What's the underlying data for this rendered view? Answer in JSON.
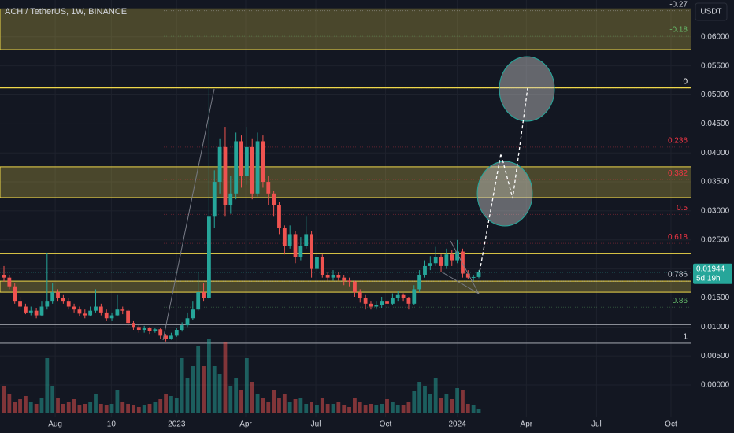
{
  "chart_data": {
    "type": "candlestick",
    "title": "ACH / TetherUS, 1W, BINANCE",
    "currency": "USDT",
    "up_color": "#26a69a",
    "down_color": "#ef5350",
    "candles": [
      [
        0.019,
        0.0205,
        0.0178,
        0.0185
      ],
      [
        0.0185,
        0.019,
        0.0165,
        0.017
      ],
      [
        0.017,
        0.0175,
        0.014,
        0.0145
      ],
      [
        0.0145,
        0.0152,
        0.013,
        0.0135
      ],
      [
        0.0135,
        0.014,
        0.0122,
        0.0125
      ],
      [
        0.0125,
        0.0135,
        0.012,
        0.0128
      ],
      [
        0.0128,
        0.0133,
        0.0115,
        0.012
      ],
      [
        0.012,
        0.0145,
        0.0118,
        0.0135
      ],
      [
        0.0135,
        0.0228,
        0.013,
        0.0145
      ],
      [
        0.0145,
        0.0175,
        0.014,
        0.016
      ],
      [
        0.016,
        0.0165,
        0.0145,
        0.015
      ],
      [
        0.015,
        0.0155,
        0.014,
        0.0145
      ],
      [
        0.0145,
        0.015,
        0.013,
        0.0135
      ],
      [
        0.0135,
        0.014,
        0.0125,
        0.013
      ],
      [
        0.013,
        0.0135,
        0.0118,
        0.0123
      ],
      [
        0.0123,
        0.013,
        0.0115,
        0.012
      ],
      [
        0.012,
        0.0135,
        0.0118,
        0.0128
      ],
      [
        0.0128,
        0.0165,
        0.0125,
        0.0135
      ],
      [
        0.0135,
        0.014,
        0.012,
        0.0125
      ],
      [
        0.0125,
        0.013,
        0.011,
        0.0115
      ],
      [
        0.0115,
        0.0125,
        0.011,
        0.012
      ],
      [
        0.012,
        0.0155,
        0.0118,
        0.013
      ],
      [
        0.013,
        0.0135,
        0.0122,
        0.0128
      ],
      [
        0.0128,
        0.013,
        0.0102,
        0.0107
      ],
      [
        0.0107,
        0.011,
        0.0095,
        0.01
      ],
      [
        0.01,
        0.0103,
        0.009,
        0.0095
      ],
      [
        0.0095,
        0.0102,
        0.009,
        0.0098
      ],
      [
        0.0098,
        0.01,
        0.0088,
        0.0093
      ],
      [
        0.0093,
        0.0099,
        0.009,
        0.0096
      ],
      [
        0.0096,
        0.0098,
        0.008,
        0.0085
      ],
      [
        0.0085,
        0.0088,
        0.0075,
        0.008
      ],
      [
        0.008,
        0.009,
        0.0078,
        0.0085
      ],
      [
        0.0085,
        0.0098,
        0.0083,
        0.0095
      ],
      [
        0.0095,
        0.0108,
        0.0092,
        0.0103
      ],
      [
        0.0103,
        0.0125,
        0.01,
        0.0115
      ],
      [
        0.0115,
        0.0145,
        0.0112,
        0.013
      ],
      [
        0.013,
        0.0195,
        0.0128,
        0.016
      ],
      [
        0.016,
        0.0175,
        0.0145,
        0.015
      ],
      [
        0.015,
        0.0515,
        0.0148,
        0.029
      ],
      [
        0.029,
        0.037,
        0.027,
        0.035
      ],
      [
        0.035,
        0.0425,
        0.033,
        0.041
      ],
      [
        0.041,
        0.0445,
        0.029,
        0.031
      ],
      [
        0.031,
        0.036,
        0.0295,
        0.033
      ],
      [
        0.033,
        0.0435,
        0.032,
        0.042
      ],
      [
        0.042,
        0.043,
        0.034,
        0.036
      ],
      [
        0.036,
        0.0445,
        0.0345,
        0.041
      ],
      [
        0.041,
        0.0425,
        0.032,
        0.033
      ],
      [
        0.033,
        0.0435,
        0.0325,
        0.042
      ],
      [
        0.042,
        0.043,
        0.034,
        0.035
      ],
      [
        0.035,
        0.036,
        0.031,
        0.033
      ],
      [
        0.033,
        0.0335,
        0.029,
        0.031
      ],
      [
        0.031,
        0.0315,
        0.026,
        0.027
      ],
      [
        0.027,
        0.0275,
        0.0225,
        0.024
      ],
      [
        0.024,
        0.0275,
        0.0235,
        0.026
      ],
      [
        0.026,
        0.0265,
        0.021,
        0.022
      ],
      [
        0.022,
        0.0255,
        0.0215,
        0.024
      ],
      [
        0.024,
        0.029,
        0.0235,
        0.026
      ],
      [
        0.026,
        0.0265,
        0.0185,
        0.02
      ],
      [
        0.02,
        0.0225,
        0.0195,
        0.022
      ],
      [
        0.022,
        0.0225,
        0.0185,
        0.019
      ],
      [
        0.019,
        0.0195,
        0.018,
        0.0185
      ],
      [
        0.0185,
        0.0198,
        0.018,
        0.019
      ],
      [
        0.019,
        0.0195,
        0.018,
        0.0185
      ],
      [
        0.0185,
        0.019,
        0.0172,
        0.018
      ],
      [
        0.018,
        0.0185,
        0.017,
        0.0178
      ],
      [
        0.0178,
        0.018,
        0.0152,
        0.016
      ],
      [
        0.016,
        0.0165,
        0.0142,
        0.015
      ],
      [
        0.015,
        0.0155,
        0.013,
        0.014
      ],
      [
        0.014,
        0.0145,
        0.013,
        0.0135
      ],
      [
        0.0135,
        0.0145,
        0.013,
        0.0138
      ],
      [
        0.0138,
        0.0152,
        0.0133,
        0.0145
      ],
      [
        0.0145,
        0.0148,
        0.0135,
        0.014
      ],
      [
        0.014,
        0.0158,
        0.0138,
        0.015
      ],
      [
        0.015,
        0.0162,
        0.0145,
        0.0155
      ],
      [
        0.0155,
        0.0158,
        0.0145,
        0.015
      ],
      [
        0.015,
        0.0152,
        0.013,
        0.014
      ],
      [
        0.014,
        0.0172,
        0.0138,
        0.0165
      ],
      [
        0.0165,
        0.0198,
        0.016,
        0.019
      ],
      [
        0.019,
        0.0215,
        0.0185,
        0.0205
      ],
      [
        0.0205,
        0.0222,
        0.0198,
        0.021
      ],
      [
        0.021,
        0.0238,
        0.0205,
        0.022
      ],
      [
        0.022,
        0.0225,
        0.0195,
        0.0205
      ],
      [
        0.0205,
        0.0235,
        0.02,
        0.0225
      ],
      [
        0.0225,
        0.0232,
        0.0205,
        0.0215
      ],
      [
        0.0215,
        0.025,
        0.021,
        0.023
      ],
      [
        0.023,
        0.0235,
        0.0185,
        0.0192
      ],
      [
        0.0192,
        0.0198,
        0.0182,
        0.0185
      ],
      [
        0.0185,
        0.019,
        0.018,
        0.0186
      ],
      [
        0.0186,
        0.0198,
        0.0184,
        0.01944
      ]
    ],
    "volumes": [
      35,
      25,
      15,
      18,
      22,
      15,
      12,
      20,
      70,
      35,
      20,
      12,
      15,
      18,
      10,
      12,
      15,
      25,
      12,
      10,
      12,
      30,
      15,
      12,
      10,
      8,
      10,
      12,
      15,
      18,
      25,
      22,
      20,
      70,
      45,
      60,
      85,
      60,
      95,
      60,
      50,
      90,
      35,
      45,
      30,
      70,
      40,
      25,
      20,
      15,
      30,
      20,
      25,
      15,
      18,
      20,
      12,
      15,
      10,
      20,
      12,
      12,
      15,
      10,
      8,
      20,
      15,
      10,
      12,
      10,
      12,
      18,
      15,
      10,
      10,
      15,
      28,
      40,
      35,
      25,
      45,
      20,
      25,
      18,
      32,
      30,
      12,
      10,
      5
    ],
    "vlim": [
      0,
      100
    ],
    "xlim": [
      -0.73,
      127.4
    ],
    "xticks": [
      {
        "value": 9.5,
        "label": "Aug"
      },
      {
        "value": 19.9,
        "label": "10"
      },
      {
        "value": 32,
        "label": "2023"
      },
      {
        "value": 44.8,
        "label": "Apr"
      },
      {
        "value": 57.8,
        "label": "Jul"
      },
      {
        "value": 70.7,
        "label": "Oct"
      },
      {
        "value": 84,
        "label": "2024"
      },
      {
        "value": 96.8,
        "label": "Apr"
      },
      {
        "value": 109.8,
        "label": "Jul"
      },
      {
        "value": 123.6,
        "label": "Oct"
      }
    ],
    "ylim": [
      -0.00556,
      0.06635
    ],
    "yticks": [
      {
        "value": 0,
        "label": "0.00000"
      },
      {
        "value": 0.005,
        "label": "0.00500"
      },
      {
        "value": 0.01,
        "label": "0.01000"
      },
      {
        "value": 0.015,
        "label": "0.01500"
      },
      {
        "value": 0.02,
        "label": "0.02000"
      },
      {
        "value": 0.025,
        "label": "0.02500"
      },
      {
        "value": 0.03,
        "label": "0.03000"
      },
      {
        "value": 0.035,
        "label": "0.03500"
      },
      {
        "value": 0.04,
        "label": "0.04000"
      },
      {
        "value": 0.045,
        "label": "0.04500"
      },
      {
        "value": 0.05,
        "label": "0.05000"
      },
      {
        "value": 0.055,
        "label": "0.05500"
      },
      {
        "value": 0.06,
        "label": "0.06000"
      }
    ],
    "grid": true,
    "fib_levels": [
      {
        "level": -0.27,
        "price": 0.0645,
        "color": "#d1d4dc"
      },
      {
        "level": -0.18,
        "price": 0.0601,
        "color": "#66bb6a"
      },
      {
        "level": 0,
        "price": 0.0512,
        "color": "#ffffff"
      },
      {
        "level": 0.236,
        "price": 0.041,
        "color": "#f23645"
      },
      {
        "level": 0.382,
        "price": 0.0354,
        "color": "#f23645"
      },
      {
        "level": 0.5,
        "price": 0.0294,
        "color": "#f23645"
      },
      {
        "level": 0.618,
        "price": 0.0244,
        "color": "#f23645"
      },
      {
        "level": 0.786,
        "price": 0.0179,
        "color": "#d1d4dc"
      },
      {
        "level": 0.86,
        "price": 0.0134,
        "color": "#66bb6a"
      },
      {
        "level": 1,
        "price": 0.0072,
        "color": "#d1d4dc"
      }
    ],
    "zones": [
      [
        0.0578,
        0.0648
      ],
      [
        0.0323,
        0.0376
      ],
      [
        0.016,
        0.0179
      ]
    ],
    "hlines": [
      {
        "price": 0.0512,
        "color": "#f0d84a"
      },
      {
        "price": 0.0227,
        "color": "#f0d84a"
      },
      {
        "price": 0.01045,
        "color": "#d1d4dc"
      },
      {
        "price": 0.0072,
        "color": "#9598a1"
      }
    ],
    "last_price": 0.01944,
    "countdown": "5d 19h",
    "marked_price": 0.01914
  }
}
